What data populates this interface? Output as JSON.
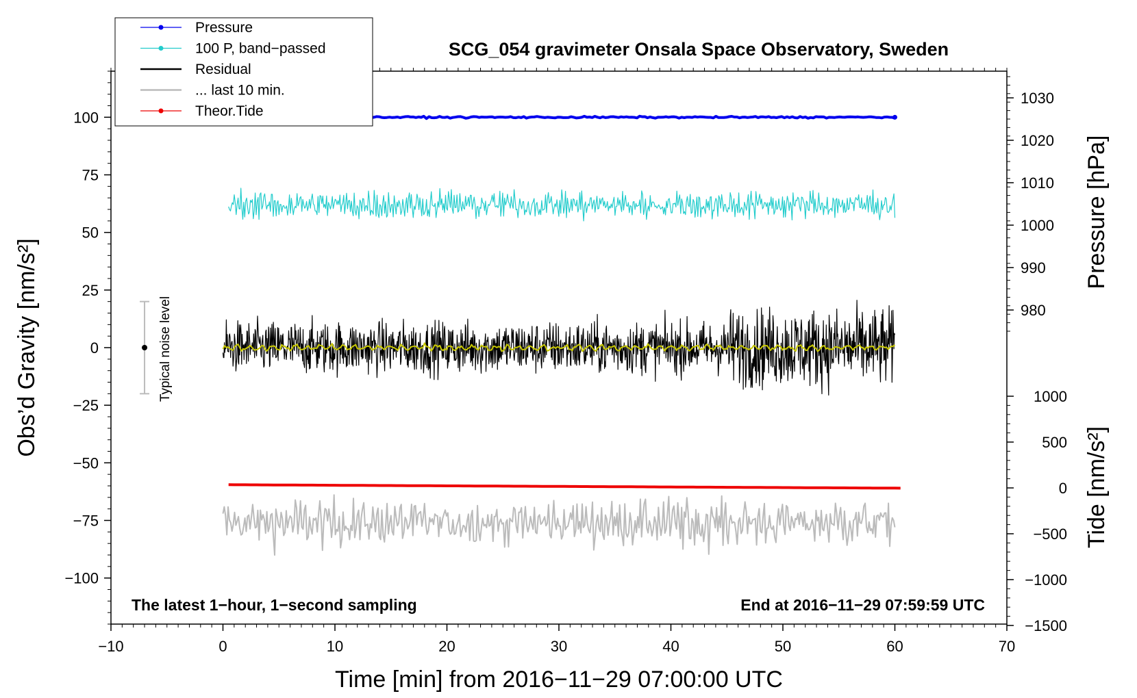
{
  "chart_data": {
    "type": "line",
    "title": "SCG_054 gravimeter Onsala Space Observatory, Sweden",
    "xlabel": "Time [min] from 2016−11−29 07:00:00 UTC",
    "ylabel_left": "Obs’d Gravity [nm/s²]",
    "ylabel_right_pressure": "Pressure [hPa]",
    "ylabel_right_tide": "Tide [nm/s²]",
    "xlim": [
      -10,
      70
    ],
    "ylim": [
      -120,
      120
    ],
    "x_ticks": [
      "−10",
      "0",
      "10",
      "20",
      "30",
      "40",
      "50",
      "60",
      "70"
    ],
    "y_ticks_left": [
      "100",
      "75",
      "50",
      "25",
      "0",
      "−25",
      "−50",
      "−75",
      "−100"
    ],
    "y_ticks_pressure": [
      "1030",
      "1020",
      "1010",
      "1000",
      "990",
      "980"
    ],
    "y_ticks_tide": [
      "1000",
      "500",
      "0",
      "−500",
      "−1000",
      "−1500"
    ],
    "annotation_left": "The latest 1−hour, 1−second sampling",
    "annotation_right": "End at 2016−11−29 07:59:59 UTC",
    "noise_label": "Typical noise level",
    "noise_bar": {
      "x": -7,
      "center": 0,
      "half_range": 20
    },
    "legend": [
      {
        "label": "Pressure",
        "color": "#0000ee",
        "marker": true
      },
      {
        "label": "100 P, band−passed",
        "color": "#22cccc",
        "marker": true
      },
      {
        "label": "Residual",
        "color": "#000000",
        "marker": false
      },
      {
        "label": "... last 10 min.",
        "color": "#bbbbbb",
        "marker": false
      },
      {
        "label": "Theor.Tide",
        "color": "#ee0000",
        "marker": true
      }
    ],
    "series": [
      {
        "name": "Pressure",
        "color": "#0000ee",
        "x_range": [
          13,
          60
        ],
        "start": 100,
        "end": 100,
        "noise_amp": 0.2
      },
      {
        "name": "100 P, band−passed",
        "color": "#22cccc",
        "x_range": [
          0.5,
          60
        ],
        "center": 62,
        "noise_amp": 4
      },
      {
        "name": "Residual",
        "color": "#000000",
        "x_range": [
          0,
          60
        ],
        "center": 0,
        "noise_amp": 6
      },
      {
        "name": "Residual smoothed",
        "color": "#c8c800",
        "x_range": [
          0,
          60
        ],
        "center": 0,
        "noise_amp": 0.8
      },
      {
        "name": "... last 10 min.",
        "color": "#bbbbbb",
        "x_range": [
          0,
          60
        ],
        "center": -76,
        "noise_amp": 7
      },
      {
        "name": "Theor.Tide",
        "color": "#ee0000",
        "x_range": [
          0.5,
          60.5
        ],
        "start": -59.5,
        "end": -61,
        "noise_amp": 0
      }
    ]
  }
}
